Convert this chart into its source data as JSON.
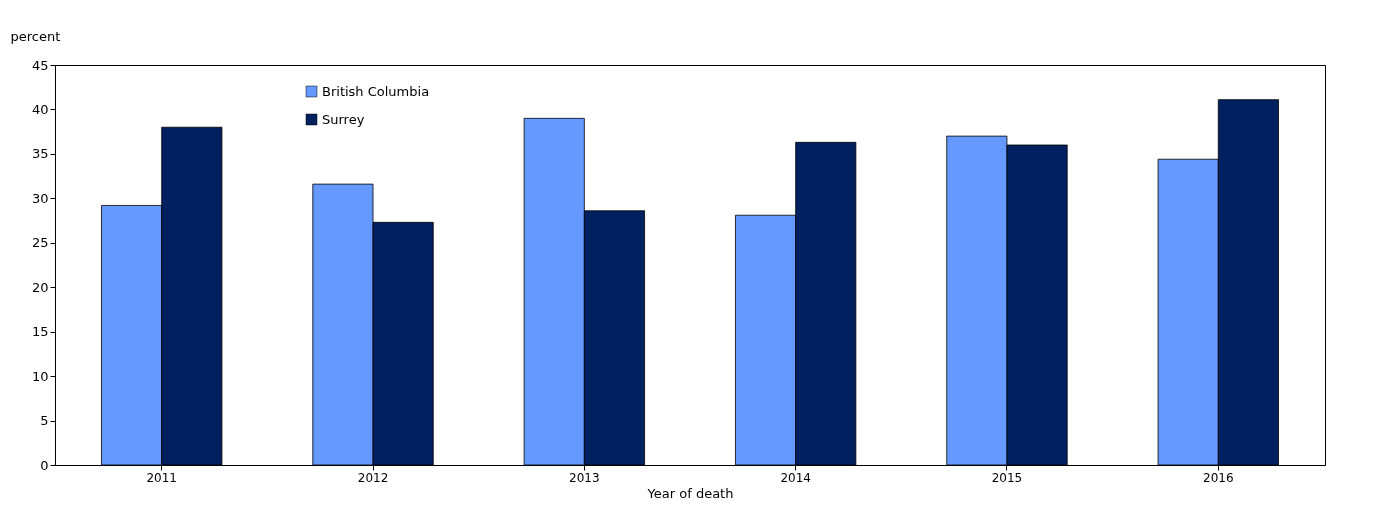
{
  "chart_data": {
    "type": "bar",
    "xlabel": "Year of death",
    "ylabel": "percent",
    "categories": [
      "2011",
      "2012",
      "2013",
      "2014",
      "2015",
      "2016"
    ],
    "series": [
      {
        "name": "British Columbia",
        "color": "#6699ff",
        "values": [
          29.2,
          31.6,
          39.0,
          28.1,
          37.0,
          34.4
        ]
      },
      {
        "name": "Surrey",
        "color": "#002060",
        "values": [
          38.0,
          27.3,
          28.6,
          36.3,
          36.0,
          41.1
        ]
      }
    ],
    "ylim": [
      0,
      45
    ],
    "yticks": [
      0,
      5,
      10,
      15,
      20,
      25,
      30,
      35,
      40,
      45
    ],
    "grid": false,
    "legend": "top left"
  }
}
